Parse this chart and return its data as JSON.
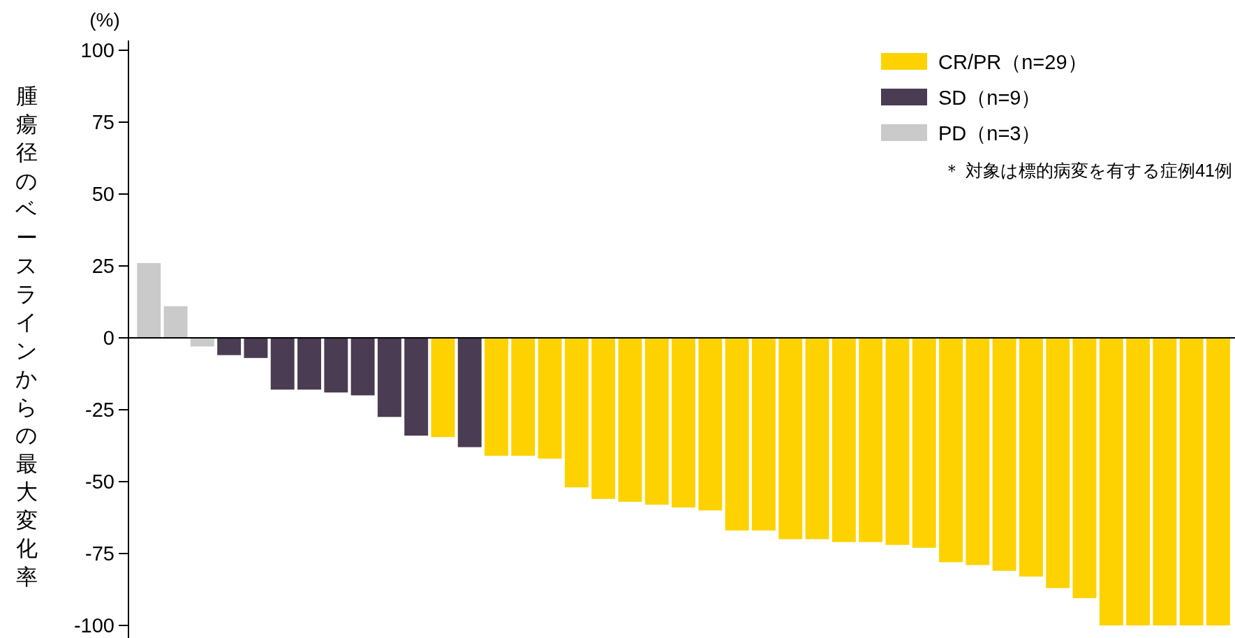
{
  "chart_data": {
    "type": "bar",
    "ylabel": "腫瘍径のベースラインからの最大変化率",
    "categories": [
      null,
      null,
      null,
      null,
      null,
      null,
      null,
      null,
      null,
      null,
      null,
      null,
      null,
      null,
      null,
      null,
      null,
      null,
      null,
      null,
      null,
      null,
      null,
      null,
      null,
      null,
      null,
      null,
      null,
      null,
      null,
      null,
      null,
      null,
      null,
      null,
      null,
      null,
      null,
      null,
      null
    ],
    "series": [
      {
        "name": "CR/PR（n=29）",
        "color": "#fdd200",
        "values": [
          null,
          null,
          null,
          null,
          null,
          null,
          null,
          null,
          null,
          null,
          null,
          -34.5,
          null,
          -41,
          -41,
          -42,
          -52,
          -56,
          -57,
          -58,
          -59,
          -60,
          -67,
          -67,
          -70,
          -70,
          -71,
          -71,
          -72,
          -73,
          -78,
          -79,
          -81,
          -83,
          -87,
          -90.5,
          -100,
          -100,
          -100,
          -100,
          -100
        ]
      },
      {
        "name": "SD（n=9）",
        "color": "#4a3c52",
        "values": [
          null,
          null,
          null,
          -6,
          -7,
          -18,
          -18,
          -19,
          -20,
          -27.5,
          -34,
          null,
          -38,
          null,
          null,
          null,
          null,
          null,
          null,
          null,
          null,
          null,
          null,
          null,
          null,
          null,
          null,
          null,
          null,
          null,
          null,
          null,
          null,
          null,
          null,
          null,
          null,
          null,
          null,
          null,
          null
        ]
      },
      {
        "name": "PD（n=3）",
        "color": "#c9cac9",
        "values": [
          26,
          11,
          -3,
          null,
          null,
          null,
          null,
          null,
          null,
          null,
          null,
          null,
          null,
          null,
          null,
          null,
          null,
          null,
          null,
          null,
          null,
          null,
          null,
          null,
          null,
          null,
          null,
          null,
          null,
          null,
          null,
          null,
          null,
          null,
          null,
          null,
          null,
          null,
          null,
          null,
          null
        ]
      }
    ],
    "ylim": [
      -100,
      100
    ],
    "yticks": [
      -100,
      -75,
      -50,
      -25,
      0,
      25,
      50,
      75,
      100
    ],
    "legend": "top right",
    "annotations": [
      "(%)",
      "＊ 対象は標的病変を有する症例41例"
    ]
  }
}
